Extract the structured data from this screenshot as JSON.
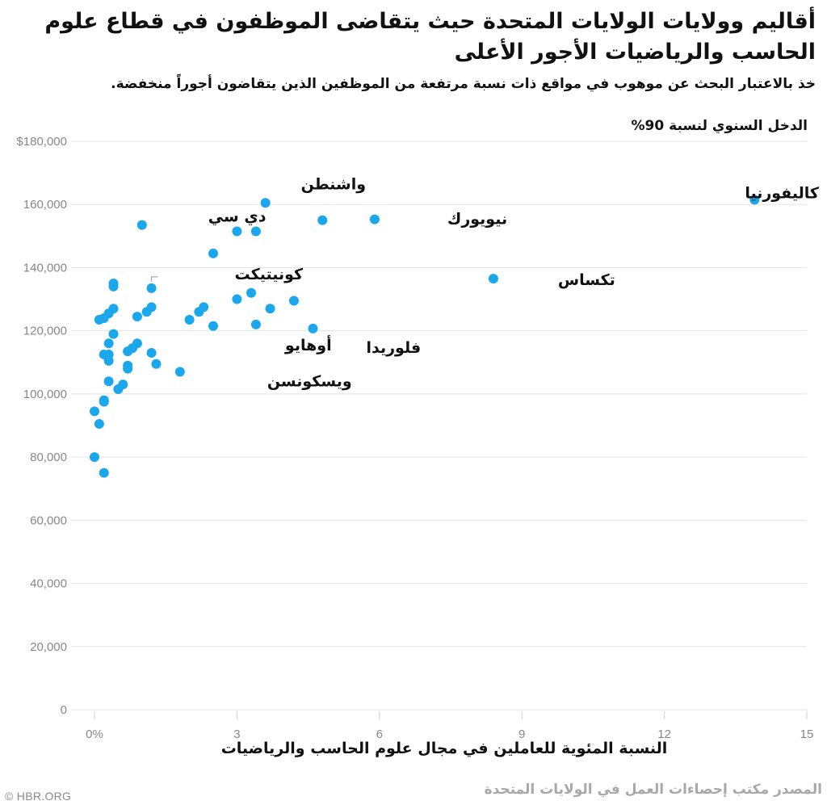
{
  "title": "أقاليم وولايات الولايات المتحدة حيث يتقاضى الموظفون في قطاع علوم الحاسب والرياضيات الأجور الأعلى",
  "subtitle": "خذ بالاعتبار البحث عن موهوب في مواقع ذات نسبة مرتفعة من الموظفين الذين يتقاضون أجوراً منخفضة.",
  "source": "المصدر مكتب إحصاءات العمل في الولايات المتحدة",
  "logo": "© HBR.ORG",
  "colors": {
    "point": "#1aa7ec",
    "grid": "#e3e3e3",
    "axis_text": "#888888",
    "label": "#111111"
  },
  "chart_data": {
    "type": "scatter",
    "ylabel": "الدخل السنوي لنسبة 90%",
    "xlabel": "النسبة المئوية للعاملين في مجال علوم الحاسب والرياضيات",
    "xlim": [
      0,
      15
    ],
    "ylim": [
      0,
      180000
    ],
    "x_ticks": [
      0,
      3,
      6,
      9,
      12,
      15
    ],
    "x_tick_labels": [
      "0%",
      "3",
      "6",
      "9",
      "12",
      "15"
    ],
    "y_ticks": [
      0,
      20000,
      40000,
      60000,
      80000,
      100000,
      120000,
      140000,
      160000,
      180000
    ],
    "y_tick_labels": [
      "0",
      "20,000",
      "40,000",
      "60,000",
      "80,000",
      "100,000",
      "120,000",
      "140,000",
      "160,000",
      "$180,000"
    ],
    "grid": true,
    "points": [
      {
        "x": 13.9,
        "y": 161500,
        "label": "كاليفورنيا"
      },
      {
        "x": 3.6,
        "y": 160500,
        "label": "واشنطن"
      },
      {
        "x": 5.9,
        "y": 155300,
        "label": "نيويورك"
      },
      {
        "x": 1.0,
        "y": 153500,
        "label": "دي سي"
      },
      {
        "x": 8.4,
        "y": 136500,
        "label": "تكساس"
      },
      {
        "x": 1.2,
        "y": 133500,
        "label": "كونيتيكت"
      },
      {
        "x": 3.4,
        "y": 122000,
        "label": "أوهايو"
      },
      {
        "x": 4.6,
        "y": 120700,
        "label": "فلوريدا"
      },
      {
        "x": 1.8,
        "y": 107000,
        "label": "ويسكونسن"
      },
      {
        "x": 4.8,
        "y": 155000
      },
      {
        "x": 3.0,
        "y": 151500
      },
      {
        "x": 3.4,
        "y": 151500
      },
      {
        "x": 2.5,
        "y": 144500
      },
      {
        "x": 3.3,
        "y": 132000
      },
      {
        "x": 3.0,
        "y": 130000
      },
      {
        "x": 4.2,
        "y": 129500
      },
      {
        "x": 3.7,
        "y": 127000
      },
      {
        "x": 2.3,
        "y": 127500
      },
      {
        "x": 2.2,
        "y": 126000
      },
      {
        "x": 2.0,
        "y": 123500
      },
      {
        "x": 2.5,
        "y": 121500
      },
      {
        "x": 0.4,
        "y": 135000
      },
      {
        "x": 0.4,
        "y": 134000
      },
      {
        "x": 0.4,
        "y": 127000
      },
      {
        "x": 0.3,
        "y": 125500
      },
      {
        "x": 0.2,
        "y": 124000
      },
      {
        "x": 0.1,
        "y": 123500
      },
      {
        "x": 0.4,
        "y": 119000
      },
      {
        "x": 0.9,
        "y": 124500
      },
      {
        "x": 1.1,
        "y": 126000
      },
      {
        "x": 1.2,
        "y": 127500
      },
      {
        "x": 0.3,
        "y": 116000
      },
      {
        "x": 0.9,
        "y": 116000
      },
      {
        "x": 0.8,
        "y": 114500
      },
      {
        "x": 0.7,
        "y": 113500
      },
      {
        "x": 0.2,
        "y": 112500
      },
      {
        "x": 0.3,
        "y": 112500
      },
      {
        "x": 1.2,
        "y": 113000
      },
      {
        "x": 0.3,
        "y": 110500
      },
      {
        "x": 0.7,
        "y": 109000
      },
      {
        "x": 0.7,
        "y": 108000
      },
      {
        "x": 1.3,
        "y": 109500
      },
      {
        "x": 0.6,
        "y": 103000
      },
      {
        "x": 0.3,
        "y": 104000
      },
      {
        "x": 0.5,
        "y": 101500
      },
      {
        "x": 0.2,
        "y": 98000
      },
      {
        "x": 0.2,
        "y": 97500
      },
      {
        "x": 0.0,
        "y": 94500
      },
      {
        "x": 0.1,
        "y": 90500
      },
      {
        "x": 0.0,
        "y": 80000
      },
      {
        "x": 0.2,
        "y": 75000
      }
    ]
  }
}
